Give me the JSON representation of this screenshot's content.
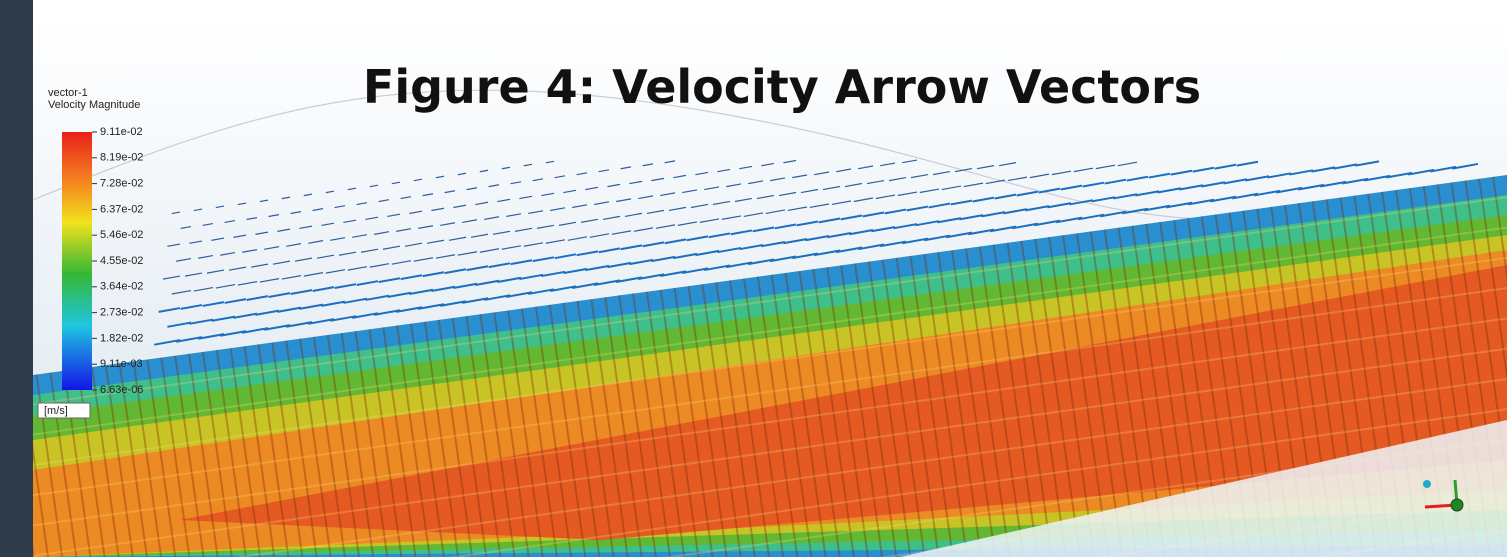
{
  "title": "Figure 4: Velocity Arrow Vectors",
  "legend": {
    "name": "vector-1",
    "variable": "Velocity Magnitude",
    "labels": [
      "9.11e-02",
      "8.19e-02",
      "7.28e-02",
      "6.37e-02",
      "5.46e-02",
      "4.55e-02",
      "3.64e-02",
      "2.73e-02",
      "1.82e-02",
      "9.11e-03",
      "6.63e-06"
    ],
    "unit": "[m/s]"
  }
}
